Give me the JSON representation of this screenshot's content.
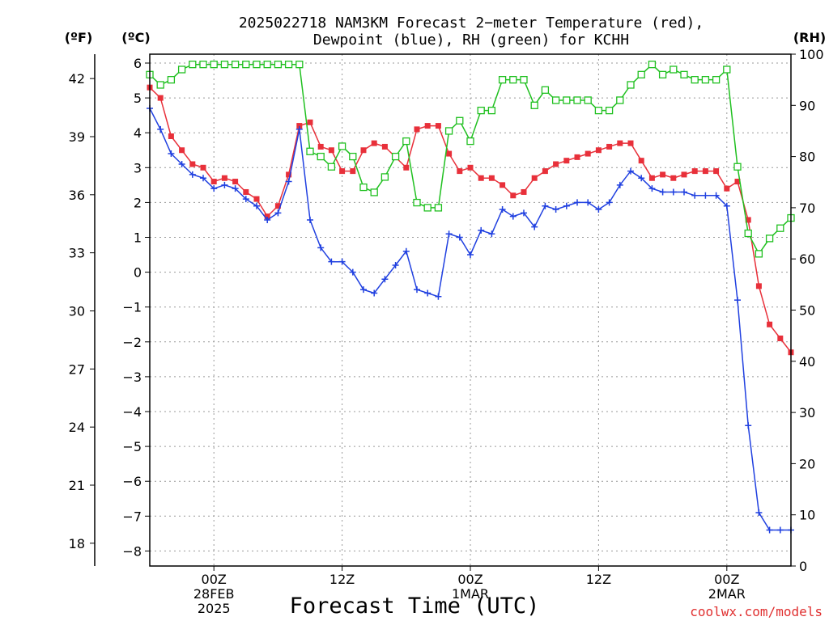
{
  "chart_data": {
    "type": "line",
    "title_line1": "2025022718 NAM3KM Forecast 2−meter Temperature (red),",
    "title_line2": "Dewpoint (blue), RH (green) for KCHH",
    "unit_f": "(ºF)",
    "unit_c": "(ºC)",
    "unit_rh": "(RH)",
    "xlabel": "Forecast Time (UTC)",
    "credit": "coolwx.com/models",
    "y_left_c": {
      "range": [
        -8.5,
        6.3
      ],
      "ticks": [
        "6",
        "5",
        "4",
        "3",
        "2",
        "1",
        "0",
        "−1",
        "−2",
        "−3",
        "−4",
        "−5",
        "−6",
        "−7",
        "−8"
      ]
    },
    "y_left_f": {
      "ticks": [
        "42",
        "39",
        "36",
        "33",
        "30",
        "27",
        "24",
        "21",
        "18"
      ]
    },
    "y_right_rh": {
      "range": [
        0,
        100
      ],
      "ticks": [
        "100",
        "90",
        "80",
        "70",
        "60",
        "50",
        "40",
        "30",
        "20",
        "10",
        "0"
      ]
    },
    "x_range_hours": [
      -6,
      54
    ],
    "x_ticks": [
      {
        "hour": 0,
        "lines": [
          "00Z",
          "28FEB",
          "2025"
        ]
      },
      {
        "hour": 12,
        "lines": [
          "12Z"
        ]
      },
      {
        "hour": 24,
        "lines": [
          "00Z",
          "1MAR"
        ]
      },
      {
        "hour": 36,
        "lines": [
          "12Z"
        ]
      },
      {
        "hour": 48,
        "lines": [
          "00Z",
          "2MAR"
        ]
      }
    ],
    "series": [
      {
        "name": "Temperature",
        "color": "#e8303a",
        "marker": "filled-square",
        "unit": "C",
        "points": [
          [
            -6,
            5.3
          ],
          [
            -5,
            5.0
          ],
          [
            -4,
            3.9
          ],
          [
            -3,
            3.5
          ],
          [
            -2,
            3.1
          ],
          [
            -1,
            3.0
          ],
          [
            0,
            2.6
          ],
          [
            1,
            2.7
          ],
          [
            2,
            2.6
          ],
          [
            3,
            2.3
          ],
          [
            4,
            2.1
          ],
          [
            5,
            1.6
          ],
          [
            6,
            1.9
          ],
          [
            7,
            2.8
          ],
          [
            8,
            4.2
          ],
          [
            9,
            4.3
          ],
          [
            10,
            3.6
          ],
          [
            11,
            3.5
          ],
          [
            12,
            2.9
          ],
          [
            13,
            2.9
          ],
          [
            14,
            3.5
          ],
          [
            15,
            3.7
          ],
          [
            16,
            3.6
          ],
          [
            17,
            3.3
          ],
          [
            18,
            3.0
          ],
          [
            19,
            4.1
          ],
          [
            20,
            4.2
          ],
          [
            21,
            4.2
          ],
          [
            22,
            3.4
          ],
          [
            23,
            2.9
          ],
          [
            24,
            3.0
          ],
          [
            25,
            2.7
          ],
          [
            26,
            2.7
          ],
          [
            27,
            2.5
          ],
          [
            28,
            2.2
          ],
          [
            29,
            2.3
          ],
          [
            30,
            2.7
          ],
          [
            31,
            2.9
          ],
          [
            32,
            3.1
          ],
          [
            33,
            3.2
          ],
          [
            34,
            3.3
          ],
          [
            35,
            3.4
          ],
          [
            36,
            3.5
          ],
          [
            37,
            3.6
          ],
          [
            38,
            3.7
          ],
          [
            39,
            3.7
          ],
          [
            40,
            3.2
          ],
          [
            41,
            2.7
          ],
          [
            42,
            2.8
          ],
          [
            43,
            2.7
          ],
          [
            44,
            2.8
          ],
          [
            45,
            2.9
          ],
          [
            46,
            2.9
          ],
          [
            47,
            2.9
          ],
          [
            48,
            2.4
          ],
          [
            49,
            2.6
          ],
          [
            50,
            1.5
          ],
          [
            51,
            -0.4
          ],
          [
            52,
            -1.5
          ],
          [
            53,
            -1.9
          ],
          [
            54,
            -2.3
          ]
        ]
      },
      {
        "name": "Dewpoint",
        "color": "#2040e0",
        "marker": "plus",
        "unit": "C",
        "points": [
          [
            -6,
            4.7
          ],
          [
            -5,
            4.1
          ],
          [
            -4,
            3.4
          ],
          [
            -3,
            3.1
          ],
          [
            -2,
            2.8
          ],
          [
            -1,
            2.7
          ],
          [
            0,
            2.4
          ],
          [
            1,
            2.5
          ],
          [
            2,
            2.4
          ],
          [
            3,
            2.1
          ],
          [
            4,
            1.9
          ],
          [
            5,
            1.5
          ],
          [
            6,
            1.7
          ],
          [
            7,
            2.6
          ],
          [
            8,
            4.1
          ],
          [
            9,
            1.5
          ],
          [
            10,
            0.7
          ],
          [
            11,
            0.3
          ],
          [
            12,
            0.3
          ],
          [
            13,
            0.0
          ],
          [
            14,
            -0.5
          ],
          [
            15,
            -0.6
          ],
          [
            16,
            -0.2
          ],
          [
            17,
            0.2
          ],
          [
            18,
            0.6
          ],
          [
            19,
            -0.5
          ],
          [
            20,
            -0.6
          ],
          [
            21,
            -0.7
          ],
          [
            22,
            1.1
          ],
          [
            23,
            1.0
          ],
          [
            24,
            0.5
          ],
          [
            25,
            1.2
          ],
          [
            26,
            1.1
          ],
          [
            27,
            1.8
          ],
          [
            28,
            1.6
          ],
          [
            29,
            1.7
          ],
          [
            30,
            1.3
          ],
          [
            31,
            1.9
          ],
          [
            32,
            1.8
          ],
          [
            33,
            1.9
          ],
          [
            34,
            2.0
          ],
          [
            35,
            2.0
          ],
          [
            36,
            1.8
          ],
          [
            37,
            2.0
          ],
          [
            38,
            2.5
          ],
          [
            39,
            2.9
          ],
          [
            40,
            2.7
          ],
          [
            41,
            2.4
          ],
          [
            42,
            2.3
          ],
          [
            43,
            2.3
          ],
          [
            44,
            2.3
          ],
          [
            45,
            2.2
          ],
          [
            46,
            2.2
          ],
          [
            47,
            2.2
          ],
          [
            48,
            1.9
          ],
          [
            49,
            -0.8
          ],
          [
            50,
            -4.4
          ],
          [
            51,
            -6.9
          ],
          [
            52,
            -7.4
          ],
          [
            53,
            -7.4
          ],
          [
            54,
            -7.4
          ]
        ]
      },
      {
        "name": "RH",
        "color": "#20c020",
        "marker": "open-square",
        "unit": "%",
        "points": [
          [
            -6,
            96
          ],
          [
            -5,
            94
          ],
          [
            -4,
            95
          ],
          [
            -3,
            97
          ],
          [
            -2,
            98
          ],
          [
            -1,
            98
          ],
          [
            0,
            98
          ],
          [
            1,
            98
          ],
          [
            2,
            98
          ],
          [
            3,
            98
          ],
          [
            4,
            98
          ],
          [
            5,
            98
          ],
          [
            6,
            98
          ],
          [
            7,
            98
          ],
          [
            8,
            98
          ],
          [
            9,
            81
          ],
          [
            10,
            80
          ],
          [
            11,
            78
          ],
          [
            12,
            82
          ],
          [
            13,
            80
          ],
          [
            14,
            74
          ],
          [
            15,
            73
          ],
          [
            16,
            76
          ],
          [
            17,
            80
          ],
          [
            18,
            83
          ],
          [
            19,
            71
          ],
          [
            20,
            70
          ],
          [
            21,
            70
          ],
          [
            22,
            85
          ],
          [
            23,
            87
          ],
          [
            24,
            83
          ],
          [
            25,
            89
          ],
          [
            26,
            89
          ],
          [
            27,
            95
          ],
          [
            28,
            95
          ],
          [
            29,
            95
          ],
          [
            30,
            90
          ],
          [
            31,
            93
          ],
          [
            32,
            91
          ],
          [
            33,
            91
          ],
          [
            34,
            91
          ],
          [
            35,
            91
          ],
          [
            36,
            89
          ],
          [
            37,
            89
          ],
          [
            38,
            91
          ],
          [
            39,
            94
          ],
          [
            40,
            96
          ],
          [
            41,
            98
          ],
          [
            42,
            96
          ],
          [
            43,
            97
          ],
          [
            44,
            96
          ],
          [
            45,
            95
          ],
          [
            46,
            95
          ],
          [
            47,
            95
          ],
          [
            48,
            97
          ],
          [
            49,
            78
          ],
          [
            50,
            65
          ],
          [
            51,
            61
          ],
          [
            52,
            64
          ],
          [
            53,
            66
          ],
          [
            54,
            68
          ]
        ]
      }
    ]
  }
}
